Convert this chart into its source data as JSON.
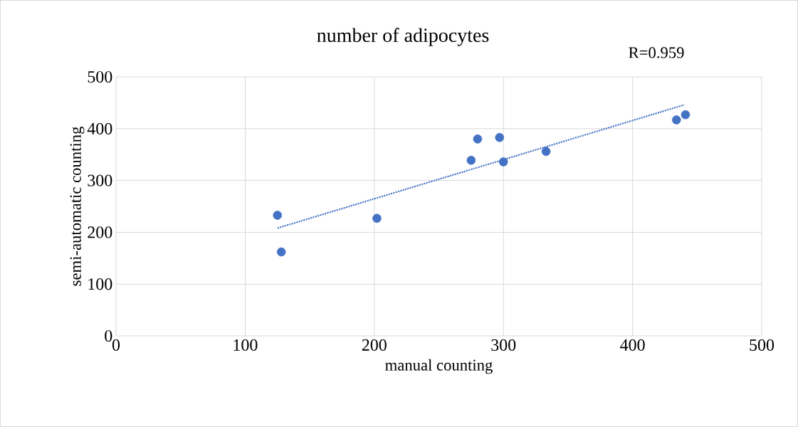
{
  "chart_data": {
    "type": "scatter",
    "title": "number of adipocytes",
    "xlabel": "manual counting",
    "ylabel": "semi-automatic counting",
    "annotations": [
      "R=0.959"
    ],
    "series": [
      {
        "type": "scatter",
        "color": "#4472c4",
        "x": [
          125,
          128,
          202,
          275,
          280,
          297,
          300,
          333,
          434,
          441
        ],
        "values": [
          233,
          162,
          227,
          339,
          380,
          383,
          336,
          356,
          417,
          427
        ]
      },
      {
        "type": "line",
        "color": "#4472c4",
        "line_style": "dotted",
        "marker": "none",
        "x": [
          125,
          440
        ],
        "values": [
          208,
          446
        ]
      }
    ],
    "marker": "circle",
    "grid": true,
    "xlim": [
      0,
      500
    ],
    "ylim": [
      0,
      500
    ],
    "xticks": [
      0,
      100,
      200,
      300,
      400,
      500
    ],
    "yticks": [
      0,
      100,
      200,
      300,
      400,
      500
    ]
  }
}
